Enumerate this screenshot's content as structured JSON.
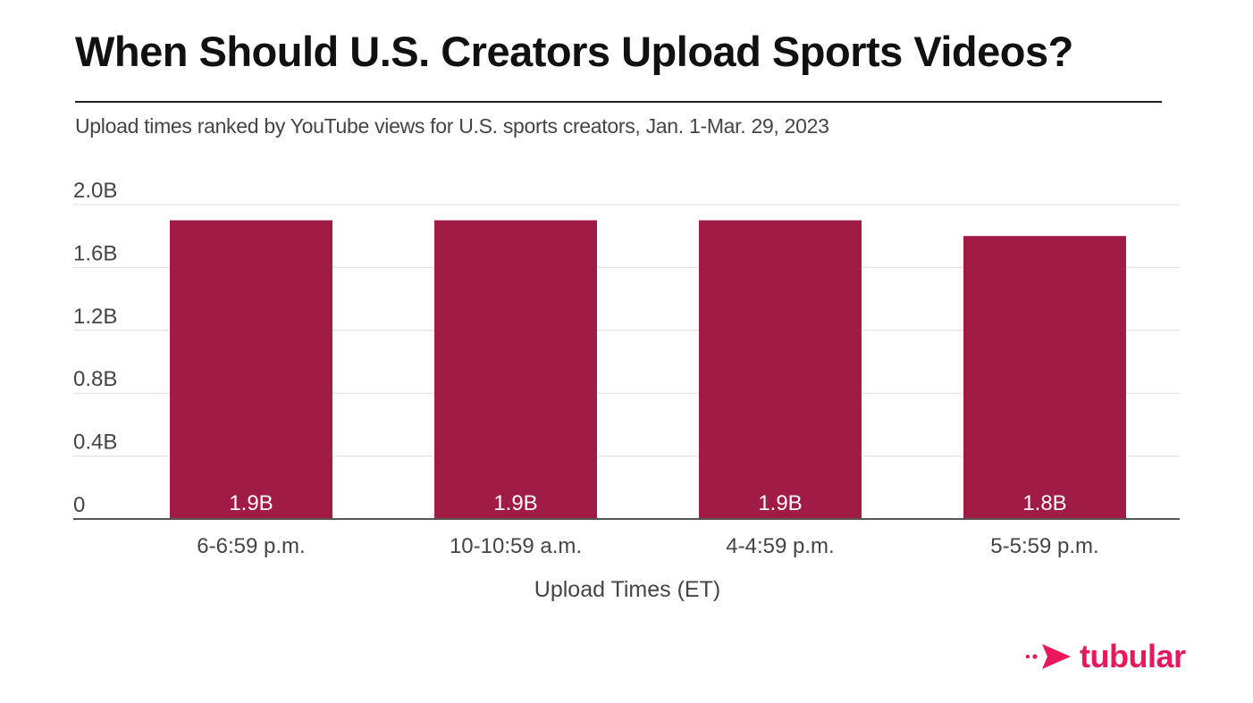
{
  "title": "When Should U.S. Creators Upload Sports Videos?",
  "subtitle": "Upload times ranked by YouTube views for U.S. sports creators, Jan. 1-Mar. 29, 2023",
  "colors": {
    "bar": "#a01c45",
    "brand": "#e8185a",
    "grid": "#dddddd",
    "axis": "#555555",
    "tick": "#444444"
  },
  "brand": {
    "name": "tubular",
    "icon": "arrow-logo-icon"
  },
  "chart_data": {
    "type": "bar",
    "categories": [
      "6-6:59 p.m.",
      "10-10:59 a.m.",
      "4-4:59 p.m.",
      "5-5:59 p.m."
    ],
    "values": [
      1.9,
      1.9,
      1.9,
      1.8
    ],
    "data_labels": [
      "1.9B",
      "1.9B",
      "1.9B",
      "1.8B"
    ],
    "title": "When Should U.S. Creators Upload Sports Videos?",
    "subtitle": "Upload times ranked by YouTube views for U.S. sports creators, Jan. 1-Mar. 29, 2023",
    "xlabel": "Upload Times (ET)",
    "ylabel": "",
    "ylim": [
      0,
      2.0
    ],
    "yticks": [
      0,
      0.4,
      0.8,
      1.2,
      1.6,
      2.0
    ],
    "ytick_labels": [
      "0",
      "0.4B",
      "0.8B",
      "1.2B",
      "1.6B",
      "2.0B"
    ],
    "grid": true,
    "legend": "none"
  }
}
